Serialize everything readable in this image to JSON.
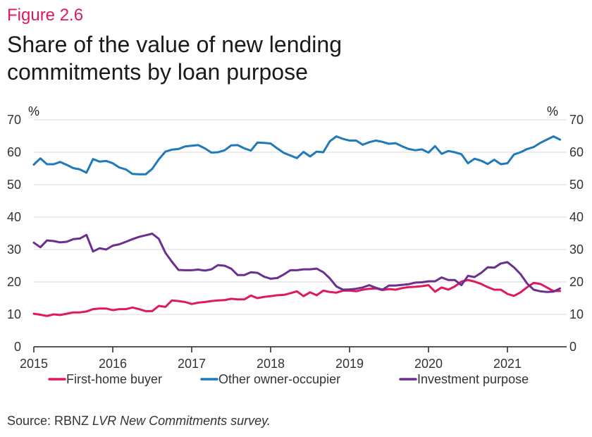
{
  "figure_label": "Figure 2.6",
  "title_lines": [
    "Share of the value of new lending",
    "commitments by loan purpose"
  ],
  "source": {
    "prefix": "Source: RBNZ ",
    "italic": "LVR New Commitments survey."
  },
  "colors": {
    "first_home": "#e0195f",
    "other_owner": "#1f7ab8",
    "investment": "#6b2f8f",
    "grid": "#d9d9d9",
    "axis": "#222222"
  },
  "chart_data": {
    "type": "line",
    "title": "Share of the value of new lending commitments by loan purpose",
    "ylabel": "%",
    "y2label": "%",
    "ylim": [
      0,
      70
    ],
    "yticks": [
      0,
      10,
      20,
      30,
      40,
      50,
      60,
      70
    ],
    "xlim": [
      2015,
      2021.75
    ],
    "xticks": [
      "2015",
      "2016",
      "2017",
      "2018",
      "2019",
      "2020",
      "2021"
    ],
    "legend_position": "bottom",
    "grid": true,
    "series": [
      {
        "name": "First-home buyer",
        "color": "#e0195f",
        "x": [
          2015.0,
          2015.083,
          2015.167,
          2015.25,
          2015.333,
          2015.417,
          2015.5,
          2015.583,
          2015.667,
          2015.75,
          2015.833,
          2015.917,
          2016.0,
          2016.083,
          2016.167,
          2016.25,
          2016.333,
          2016.417,
          2016.5,
          2016.583,
          2016.667,
          2016.75,
          2016.833,
          2016.917,
          2017.0,
          2017.083,
          2017.167,
          2017.25,
          2017.333,
          2017.417,
          2017.5,
          2017.583,
          2017.667,
          2017.75,
          2017.833,
          2017.917,
          2018.0,
          2018.083,
          2018.167,
          2018.25,
          2018.333,
          2018.417,
          2018.5,
          2018.583,
          2018.667,
          2018.75,
          2018.833,
          2018.917,
          2019.0,
          2019.083,
          2019.167,
          2019.25,
          2019.333,
          2019.417,
          2019.5,
          2019.583,
          2019.667,
          2019.75,
          2019.833,
          2019.917,
          2020.0,
          2020.083,
          2020.167,
          2020.25,
          2020.333,
          2020.417,
          2020.5,
          2020.583,
          2020.667,
          2020.75,
          2020.833,
          2020.917,
          2021.0,
          2021.083,
          2021.167,
          2021.25,
          2021.333,
          2021.417,
          2021.5,
          2021.583,
          2021.667
        ],
        "values": [
          10.2,
          9.9,
          9.5,
          10.0,
          9.8,
          10.2,
          10.6,
          10.6,
          10.9,
          11.6,
          11.8,
          11.8,
          11.3,
          11.6,
          11.6,
          12.1,
          11.6,
          11.0,
          11.0,
          12.6,
          12.3,
          14.3,
          14.1,
          13.8,
          13.2,
          13.6,
          13.8,
          14.1,
          14.3,
          14.4,
          14.8,
          14.6,
          14.6,
          15.8,
          15.0,
          15.4,
          15.6,
          15.9,
          16.0,
          16.5,
          17.1,
          15.6,
          16.8,
          15.9,
          17.3,
          16.9,
          16.7,
          17.3,
          17.3,
          17.1,
          17.6,
          17.9,
          18.0,
          17.5,
          17.8,
          17.6,
          18.1,
          18.4,
          18.5,
          18.7,
          19.0,
          17.0,
          18.3,
          17.6,
          18.6,
          20.1,
          20.6,
          20.1,
          19.4,
          18.4,
          17.6,
          17.6,
          16.3,
          15.7,
          16.8,
          18.4,
          19.7,
          19.4,
          18.3,
          17.2,
          17.2
        ]
      },
      {
        "name": "Other owner-occupier",
        "color": "#1f7ab8",
        "x": [
          2015.0,
          2015.083,
          2015.167,
          2015.25,
          2015.333,
          2015.417,
          2015.5,
          2015.583,
          2015.667,
          2015.75,
          2015.833,
          2015.917,
          2016.0,
          2016.083,
          2016.167,
          2016.25,
          2016.333,
          2016.417,
          2016.5,
          2016.583,
          2016.667,
          2016.75,
          2016.833,
          2016.917,
          2017.0,
          2017.083,
          2017.167,
          2017.25,
          2017.333,
          2017.417,
          2017.5,
          2017.583,
          2017.667,
          2017.75,
          2017.833,
          2017.917,
          2018.0,
          2018.083,
          2018.167,
          2018.25,
          2018.333,
          2018.417,
          2018.5,
          2018.583,
          2018.667,
          2018.75,
          2018.833,
          2018.917,
          2019.0,
          2019.083,
          2019.167,
          2019.25,
          2019.333,
          2019.417,
          2019.5,
          2019.583,
          2019.667,
          2019.75,
          2019.833,
          2019.917,
          2020.0,
          2020.083,
          2020.167,
          2020.25,
          2020.333,
          2020.417,
          2020.5,
          2020.583,
          2020.667,
          2020.75,
          2020.833,
          2020.917,
          2021.0,
          2021.083,
          2021.167,
          2021.25,
          2021.333,
          2021.417,
          2021.5,
          2021.583,
          2021.667
        ],
        "values": [
          56.2,
          58.1,
          56.3,
          56.3,
          57.0,
          56.1,
          55.1,
          54.7,
          53.7,
          57.9,
          57.1,
          57.3,
          56.6,
          55.3,
          54.7,
          53.3,
          53.2,
          53.2,
          54.9,
          57.8,
          60.2,
          60.8,
          61.0,
          61.8,
          62.0,
          62.2,
          61.2,
          59.9,
          60.0,
          60.6,
          62.1,
          62.2,
          61.2,
          60.5,
          63.0,
          62.9,
          62.7,
          61.2,
          59.8,
          59.0,
          58.2,
          60.1,
          58.7,
          60.2,
          60.0,
          63.4,
          64.9,
          64.1,
          63.6,
          63.6,
          62.3,
          63.1,
          63.6,
          63.2,
          62.6,
          62.8,
          61.8,
          61.0,
          60.6,
          60.9,
          59.9,
          61.9,
          59.5,
          60.4,
          60.0,
          59.4,
          56.6,
          58.0,
          57.4,
          56.4,
          57.7,
          56.3,
          56.6,
          59.3,
          60.0,
          61.0,
          61.6,
          62.9,
          63.9,
          64.9,
          63.9
        ]
      },
      {
        "name": "Investment purpose",
        "color": "#6b2f8f",
        "x": [
          2015.0,
          2015.083,
          2015.167,
          2015.25,
          2015.333,
          2015.417,
          2015.5,
          2015.583,
          2015.667,
          2015.75,
          2015.833,
          2015.917,
          2016.0,
          2016.083,
          2016.167,
          2016.25,
          2016.333,
          2016.417,
          2016.5,
          2016.583,
          2016.667,
          2016.75,
          2016.833,
          2016.917,
          2017.0,
          2017.083,
          2017.167,
          2017.25,
          2017.333,
          2017.417,
          2017.5,
          2017.583,
          2017.667,
          2017.75,
          2017.833,
          2017.917,
          2018.0,
          2018.083,
          2018.167,
          2018.25,
          2018.333,
          2018.417,
          2018.5,
          2018.583,
          2018.667,
          2018.75,
          2018.833,
          2018.917,
          2019.0,
          2019.083,
          2019.167,
          2019.25,
          2019.333,
          2019.417,
          2019.5,
          2019.583,
          2019.667,
          2019.75,
          2019.833,
          2019.917,
          2020.0,
          2020.083,
          2020.167,
          2020.25,
          2020.333,
          2020.417,
          2020.5,
          2020.583,
          2020.667,
          2020.75,
          2020.833,
          2020.917,
          2021.0,
          2021.083,
          2021.167,
          2021.25,
          2021.333,
          2021.417,
          2021.5,
          2021.583,
          2021.667
        ],
        "values": [
          32.1,
          30.7,
          32.8,
          32.6,
          32.2,
          32.4,
          33.2,
          33.4,
          34.5,
          29.4,
          30.4,
          30.0,
          31.2,
          31.6,
          32.4,
          33.2,
          33.9,
          34.4,
          34.9,
          33.3,
          29.0,
          26.2,
          23.7,
          23.6,
          23.6,
          23.8,
          23.5,
          23.9,
          25.2,
          25.0,
          24.1,
          22.1,
          22.1,
          23.0,
          22.8,
          21.6,
          21.0,
          21.2,
          22.3,
          23.6,
          23.6,
          23.9,
          23.9,
          24.1,
          23.0,
          21.1,
          18.6,
          17.6,
          17.7,
          17.9,
          18.3,
          19.0,
          18.2,
          17.6,
          18.9,
          18.9,
          19.1,
          19.3,
          19.8,
          19.9,
          20.2,
          20.2,
          21.4,
          20.6,
          20.6,
          19.0,
          21.9,
          21.5,
          22.8,
          24.5,
          24.4,
          25.7,
          26.1,
          24.5,
          22.4,
          19.5,
          17.6,
          17.1,
          16.9,
          17.0,
          18.0
        ]
      }
    ]
  }
}
